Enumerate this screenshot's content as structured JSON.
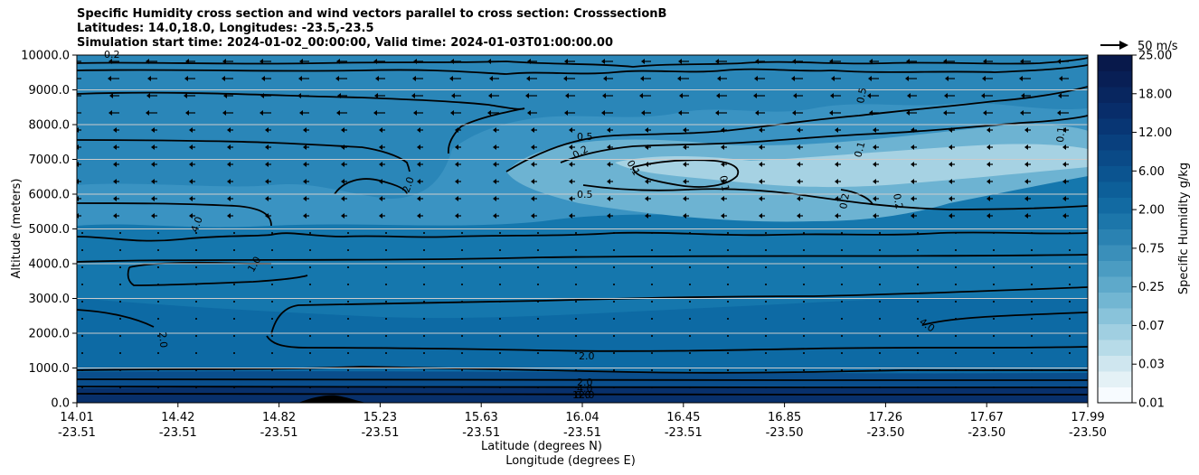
{
  "title_lines": [
    "Specific Humidity cross section and wind vectors parallel to cross section: CrosssectionB",
    "Latitudes: 14.0,18.0, Longitudes: -23.5,-23.5",
    "Simulation start time: 2024-01-02_00:00:00, Valid time: 2024-01-03T01:00:00.00"
  ],
  "colors": {
    "deep": "#0b4a86",
    "mid": "#1577ad",
    "light": "#4ea2c9",
    "pale": "#a6d2e3",
    "terrain": "#000000"
  },
  "chart_data": {
    "type": "contour",
    "xlabel_lat": "Latitude (degrees N)",
    "xlabel_lon": "Longitude (degrees E)",
    "ylabel": "Altitude (meters)",
    "ylim": [
      0,
      10000
    ],
    "yticks": [
      "0.0",
      "1000.0",
      "2000.0",
      "3000.0",
      "4000.0",
      "5000.0",
      "6000.0",
      "7000.0",
      "8000.0",
      "9000.0",
      "10000.0"
    ],
    "xticks": [
      {
        "lat": "14.01",
        "lon": "-23.51"
      },
      {
        "lat": "14.42",
        "lon": "-23.51"
      },
      {
        "lat": "14.82",
        "lon": "-23.51"
      },
      {
        "lat": "15.23",
        "lon": "-23.51"
      },
      {
        "lat": "15.63",
        "lon": "-23.51"
      },
      {
        "lat": "16.04",
        "lon": "-23.51"
      },
      {
        "lat": "16.45",
        "lon": "-23.51"
      },
      {
        "lat": "16.85",
        "lon": "-23.50"
      },
      {
        "lat": "17.26",
        "lon": "-23.50"
      },
      {
        "lat": "17.67",
        "lon": "-23.50"
      },
      {
        "lat": "17.99",
        "lon": "-23.50"
      }
    ],
    "colorbar": {
      "label": "Specific Humidity g/kg",
      "ticks": [
        "0.01",
        "0.03",
        "0.07",
        "0.25",
        "0.75",
        "2.00",
        "6.00",
        "12.00",
        "18.00",
        "25.00"
      ]
    },
    "wind_key": "50 m/s",
    "contour_labels": [
      "0.2",
      "0.5",
      "0.2",
      "0.1",
      "0.1",
      "0.5",
      "0.1",
      "0.2",
      "0.2",
      "0.1",
      "0.5",
      "2.0",
      "4.0",
      "1.0",
      "2.0",
      "2.0",
      "2.0",
      "4.0",
      "8.0",
      "12.0",
      "4.0"
    ]
  }
}
